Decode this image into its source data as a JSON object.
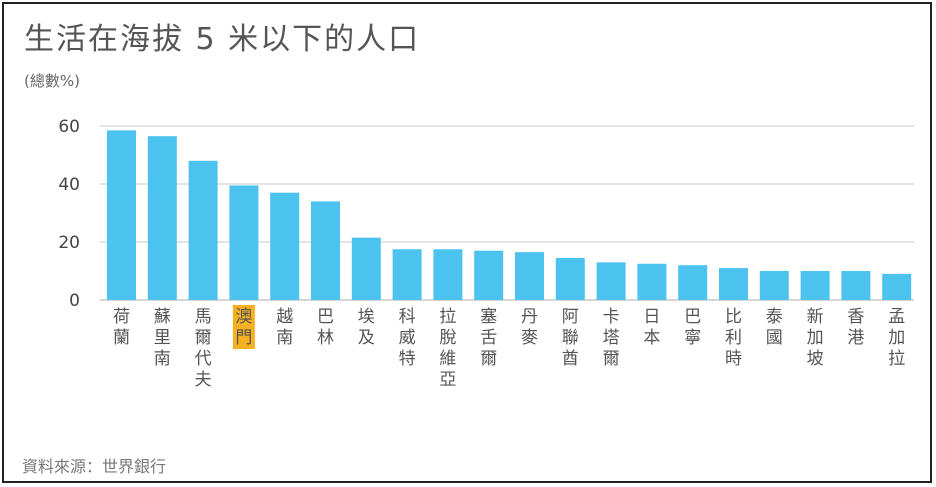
{
  "title": "生活在海拔 5 米以下的人口",
  "unit_label": "(總數%)",
  "source": "資料來源：世界銀行",
  "colors": {
    "bar": "#4cc3ef",
    "highlight": "#f5b120",
    "grid": "#c8c8c8",
    "text": "#555555"
  },
  "chart_data": {
    "type": "bar",
    "title": "生活在海拔 5 米以下的人口",
    "ylabel": "(總數%)",
    "xlabel": "",
    "ylim": [
      0,
      60
    ],
    "yticks": [
      0,
      20,
      40,
      60
    ],
    "grid": true,
    "highlight_category": "澳門",
    "categories": [
      "荷蘭",
      "蘇里南",
      "馬爾代夫",
      "澳門",
      "越南",
      "巴林",
      "埃及",
      "科威特",
      "拉脫維亞",
      "塞舌爾",
      "丹麥",
      "阿聯酋",
      "卡塔爾",
      "日本",
      "巴寧",
      "比利時",
      "泰國",
      "新加坡",
      "香港",
      "孟加拉"
    ],
    "values": [
      58.5,
      56.5,
      48.0,
      39.5,
      37.0,
      34.0,
      21.5,
      17.5,
      17.5,
      17.0,
      16.5,
      14.5,
      13.0,
      12.5,
      12.0,
      11.0,
      10.0,
      10.0,
      10.0,
      9.0
    ]
  }
}
